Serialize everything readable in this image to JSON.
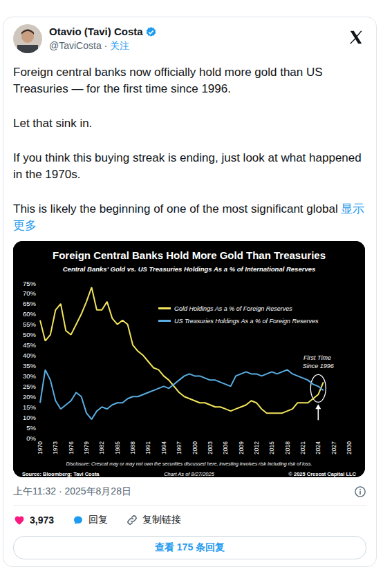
{
  "post": {
    "author": "Otavio (Tavi) Costa",
    "handle": "@TaviCosta",
    "separator": "·",
    "follow": "关注",
    "text": [
      "Foreign central banks now officially hold more gold than US Treasuries — for the first time since 1996.",
      "Let that sink in.",
      "If you think this buying streak is ending, just look at what happened in the 1970s.",
      "This is likely the beginning of one of the most significant global"
    ],
    "show_more": "显示更多",
    "timestamp": "上午11:32 · 2025年8月28日",
    "likes": "3,973",
    "reply": "回复",
    "copy_link": "复制链接",
    "view_replies": "查看 175 条回复"
  },
  "chart_data": {
    "type": "line",
    "title": "Foreign Central Banks Hold More Gold Than Treasuries",
    "subtitle": "Central Banks' Gold vs. US Treasuries Holdings As a % of International Reserves",
    "x": [
      1970,
      1971,
      1972,
      1973,
      1974,
      1975,
      1976,
      1977,
      1978,
      1979,
      1980,
      1981,
      1982,
      1983,
      1984,
      1985,
      1986,
      1987,
      1988,
      1989,
      1990,
      1991,
      1992,
      1993,
      1994,
      1995,
      1996,
      1997,
      1998,
      1999,
      2000,
      2001,
      2002,
      2003,
      2004,
      2005,
      2006,
      2007,
      2008,
      2009,
      2010,
      2011,
      2012,
      2013,
      2014,
      2015,
      2016,
      2017,
      2018,
      2019,
      2020,
      2021,
      2022,
      2023,
      2024,
      2025
    ],
    "series": [
      {
        "name": "Gold Holdings As a % of Foreign Reserves",
        "color": "#f2e55c",
        "values": [
          57,
          47,
          50,
          62,
          65,
          52,
          50,
          55,
          60,
          66,
          73,
          62,
          62,
          66,
          58,
          55,
          57,
          55,
          45,
          42,
          40,
          37,
          34,
          33,
          30,
          28,
          25,
          22,
          20,
          19,
          18,
          17,
          17,
          16,
          15,
          15,
          14,
          13,
          14,
          15,
          16,
          18,
          17,
          14,
          12,
          12,
          12,
          12,
          13,
          14,
          17,
          17,
          17,
          19,
          21,
          27
        ]
      },
      {
        "name": "US Treasuries Holdings As a % of Foreign Reserves",
        "color": "#5aaee3",
        "values": [
          17,
          33,
          28,
          18,
          14,
          16,
          18,
          22,
          20,
          12,
          9,
          13,
          15,
          14,
          16,
          17,
          17,
          19,
          20,
          20,
          21,
          22,
          23,
          24,
          25,
          24,
          26,
          28,
          30,
          31,
          30,
          30,
          29,
          28,
          28,
          27,
          26,
          25,
          30,
          31,
          32,
          31,
          31,
          30,
          31,
          32,
          31,
          32,
          33,
          31,
          30,
          29,
          28,
          26,
          25,
          23
        ]
      }
    ],
    "xlim": [
      1970,
      2030
    ],
    "xticks": [
      1970,
      1973,
      1976,
      1979,
      1982,
      1985,
      1988,
      1991,
      1994,
      1997,
      2000,
      2003,
      2006,
      2009,
      2012,
      2015,
      2018,
      2021,
      2024,
      2027,
      2030
    ],
    "ylim": [
      0,
      75
    ],
    "yticks": [
      {
        "value": 0,
        "label": "0%"
      },
      {
        "value": 5,
        "label": "5%"
      },
      {
        "value": 10,
        "label": "10%"
      },
      {
        "value": 15,
        "label": "15%"
      },
      {
        "value": 20,
        "label": "20%"
      },
      {
        "value": 25,
        "label": "25%"
      },
      {
        "value": 30,
        "label": "30%"
      },
      {
        "value": 35,
        "label": "35%"
      },
      {
        "value": 40,
        "label": "40%"
      },
      {
        "value": 45,
        "label": "45%"
      },
      {
        "value": 50,
        "label": "50%"
      },
      {
        "value": 55,
        "label": "55%"
      },
      {
        "value": 60,
        "label": "60%"
      },
      {
        "value": 65,
        "label": "65%"
      },
      {
        "value": 70,
        "label": "70%"
      },
      {
        "value": 75,
        "label": "75%"
      }
    ],
    "grid": false,
    "legend": "top",
    "annotations": [
      {
        "text": "First Time Since 1996",
        "x": 2024,
        "y": 24
      }
    ],
    "disclosure": "Disclosure: Crescat may or may not own the securities discussed here, investing involves risk including risk of loss.",
    "source": "Source: Bloomberg; Tavi Costa",
    "chart_date": "Chart As of 8/27/2025",
    "copyright": "© 2025 Crescat Capital LLC"
  }
}
